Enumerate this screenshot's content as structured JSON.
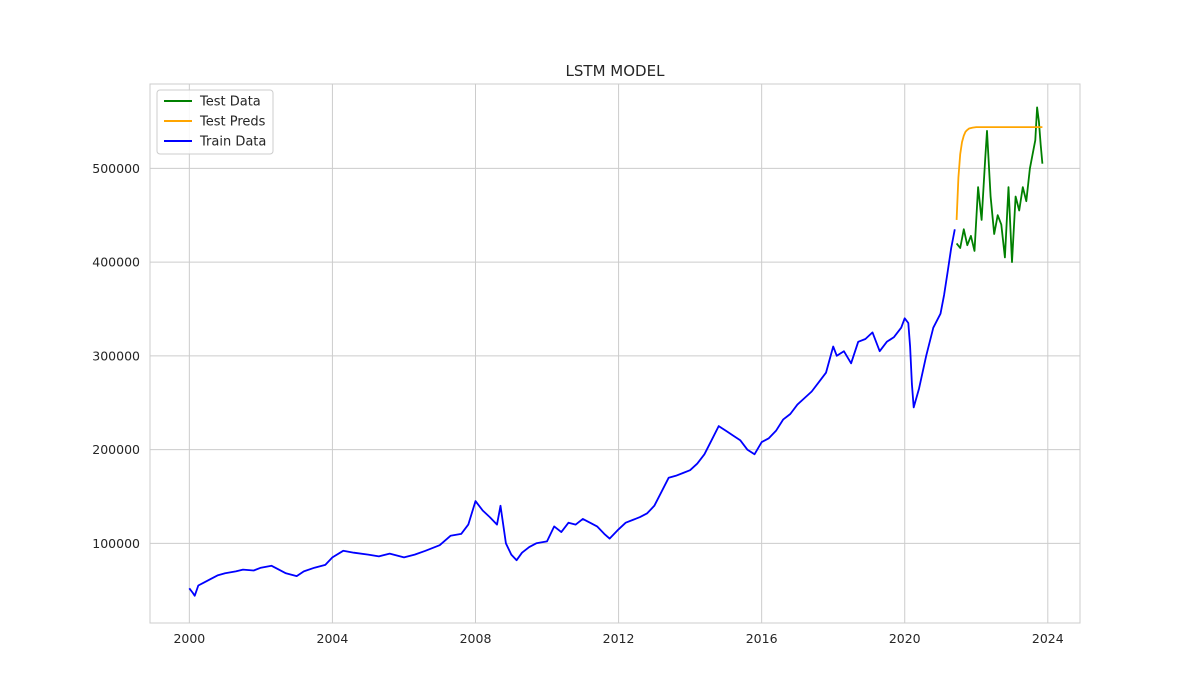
{
  "chart_data": {
    "type": "line",
    "title": "LSTM MODEL",
    "xlabel": "",
    "ylabel": "",
    "x_axis": {
      "kind": "year",
      "range": [
        1998.9,
        2024.9
      ],
      "ticks": [
        2000,
        2004,
        2008,
        2012,
        2016,
        2020,
        2024
      ],
      "tick_labels": [
        "2000",
        "2004",
        "2008",
        "2012",
        "2016",
        "2020",
        "2024"
      ]
    },
    "y_axis": {
      "range": [
        15000,
        590000
      ],
      "ticks": [
        100000,
        200000,
        300000,
        400000,
        500000
      ],
      "tick_labels": [
        "100000",
        "200000",
        "300000",
        "400000",
        "500000"
      ]
    },
    "grid": true,
    "legend": {
      "placement": "top-left"
    },
    "series": [
      {
        "name": "Test Data",
        "color": "#008000",
        "x": [
          2021.45,
          2021.55,
          2021.65,
          2021.75,
          2021.85,
          2021.95,
          2022.05,
          2022.15,
          2022.25,
          2022.3,
          2022.4,
          2022.5,
          2022.6,
          2022.7,
          2022.8,
          2022.9,
          2023.0,
          2023.1,
          2023.2,
          2023.3,
          2023.4,
          2023.5,
          2023.6,
          2023.65,
          2023.7,
          2023.75,
          2023.8,
          2023.85
        ],
        "values": [
          420000,
          415000,
          435000,
          418000,
          428000,
          412000,
          480000,
          445000,
          510000,
          540000,
          470000,
          430000,
          450000,
          440000,
          405000,
          480000,
          400000,
          470000,
          455000,
          480000,
          465000,
          500000,
          520000,
          530000,
          565000,
          550000,
          525000,
          505000
        ]
      },
      {
        "name": "Test Preds",
        "color": "#FFA500",
        "x": [
          2021.45,
          2021.5,
          2021.55,
          2021.6,
          2021.65,
          2021.7,
          2021.75,
          2021.8,
          2021.9,
          2022.0,
          2022.2,
          2022.5,
          2023.0,
          2023.5,
          2023.85
        ],
        "values": [
          445000,
          490000,
          515000,
          528000,
          535000,
          539000,
          541000,
          542500,
          543500,
          544000,
          544000,
          544000,
          544000,
          544000,
          544000
        ]
      },
      {
        "name": "Train Data",
        "color": "#0000FF",
        "x": [
          2000.0,
          2000.1,
          2000.15,
          2000.25,
          2000.4,
          2000.6,
          2000.8,
          2001.0,
          2001.3,
          2001.5,
          2001.8,
          2002.0,
          2002.3,
          2002.5,
          2002.7,
          2003.0,
          2003.2,
          2003.5,
          2003.8,
          2004.0,
          2004.3,
          2004.6,
          2005.0,
          2005.3,
          2005.6,
          2006.0,
          2006.3,
          2006.6,
          2007.0,
          2007.3,
          2007.6,
          2007.8,
          2008.0,
          2008.2,
          2008.4,
          2008.6,
          2008.7,
          2008.85,
          2009.0,
          2009.15,
          2009.3,
          2009.5,
          2009.7,
          2010.0,
          2010.2,
          2010.4,
          2010.6,
          2010.8,
          2011.0,
          2011.2,
          2011.4,
          2011.6,
          2011.75,
          2012.0,
          2012.2,
          2012.4,
          2012.6,
          2012.8,
          2013.0,
          2013.2,
          2013.4,
          2013.6,
          2013.8,
          2014.0,
          2014.2,
          2014.4,
          2014.6,
          2014.8,
          2015.0,
          2015.2,
          2015.4,
          2015.6,
          2015.8,
          2016.0,
          2016.2,
          2016.4,
          2016.6,
          2016.8,
          2017.0,
          2017.2,
          2017.4,
          2017.6,
          2017.8,
          2018.0,
          2018.1,
          2018.3,
          2018.5,
          2018.7,
          2018.9,
          2019.1,
          2019.3,
          2019.5,
          2019.7,
          2019.9,
          2020.0,
          2020.1,
          2020.15,
          2020.2,
          2020.25,
          2020.4,
          2020.6,
          2020.8,
          2021.0,
          2021.1,
          2021.2,
          2021.3,
          2021.4
        ],
        "values": [
          52000,
          47000,
          44000,
          55000,
          58000,
          62000,
          66000,
          68000,
          70000,
          72000,
          71000,
          74000,
          76000,
          72000,
          68000,
          65000,
          70000,
          74000,
          77000,
          85000,
          92000,
          90000,
          88000,
          86000,
          89000,
          85000,
          88000,
          92000,
          98000,
          108000,
          110000,
          120000,
          145000,
          135000,
          128000,
          120000,
          140000,
          100000,
          88000,
          82000,
          90000,
          96000,
          100000,
          102000,
          118000,
          112000,
          122000,
          120000,
          126000,
          122000,
          118000,
          110000,
          105000,
          115000,
          122000,
          125000,
          128000,
          132000,
          140000,
          155000,
          170000,
          172000,
          175000,
          178000,
          185000,
          195000,
          210000,
          225000,
          220000,
          215000,
          210000,
          200000,
          195000,
          208000,
          212000,
          220000,
          232000,
          238000,
          248000,
          255000,
          262000,
          272000,
          282000,
          310000,
          300000,
          305000,
          292000,
          315000,
          318000,
          325000,
          305000,
          315000,
          320000,
          330000,
          340000,
          335000,
          310000,
          270000,
          245000,
          265000,
          300000,
          330000,
          345000,
          365000,
          390000,
          415000,
          435000
        ]
      }
    ]
  }
}
